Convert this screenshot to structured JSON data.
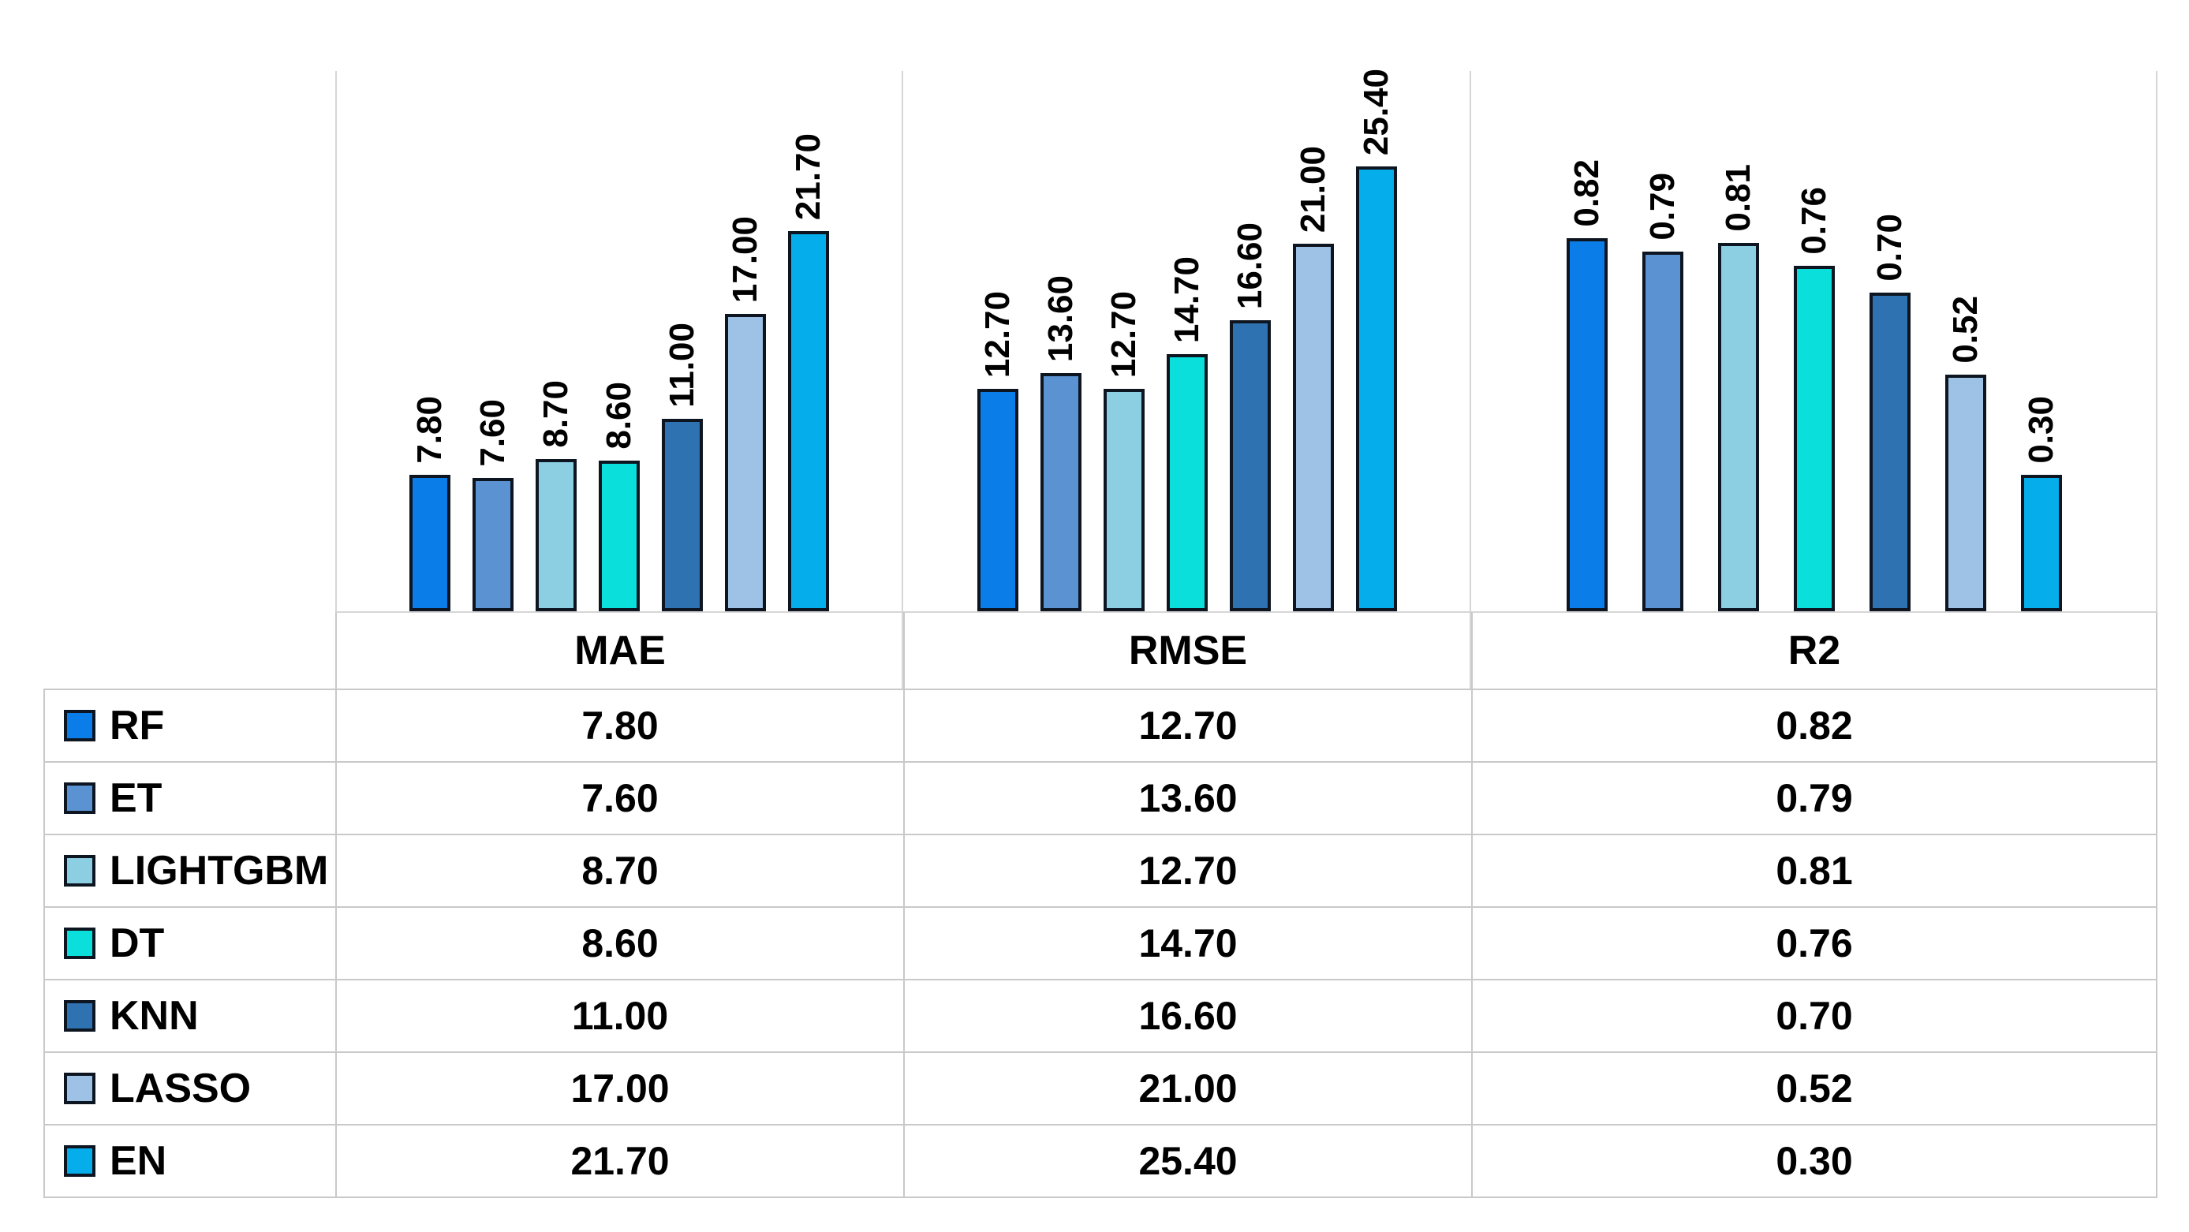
{
  "chart_data": {
    "type": "bar",
    "title": "",
    "categories": [
      "MAE",
      "RMSE",
      "R2"
    ],
    "series": [
      {
        "name": "RF",
        "color": "#0b7de9",
        "values": [
          7.8,
          12.7,
          0.82
        ],
        "labels": [
          "7.80",
          "12.70",
          "0.82"
        ]
      },
      {
        "name": "ET",
        "color": "#5b93d2",
        "values": [
          7.6,
          13.6,
          0.79
        ],
        "labels": [
          "7.60",
          "13.60",
          "0.79"
        ]
      },
      {
        "name": "LIGHTGBM",
        "color": "#8ccfe3",
        "values": [
          8.7,
          12.7,
          0.81
        ],
        "labels": [
          "8.70",
          "12.70",
          "0.81"
        ]
      },
      {
        "name": "DT",
        "color": "#0adfdb",
        "values": [
          8.6,
          14.7,
          0.76
        ],
        "labels": [
          "8.60",
          "14.70",
          "0.76"
        ]
      },
      {
        "name": "KNN",
        "color": "#2f72b2",
        "values": [
          11.0,
          16.6,
          0.7
        ],
        "labels": [
          "11.00",
          "16.60",
          "0.70"
        ]
      },
      {
        "name": "LASSO",
        "color": "#9ec2e5",
        "values": [
          17.0,
          21.0,
          0.52
        ],
        "labels": [
          "17.00",
          "21.00",
          "0.52"
        ]
      },
      {
        "name": "EN",
        "color": "#05aeea",
        "values": [
          21.7,
          25.4,
          0.3
        ],
        "labels": [
          "21.70",
          "25.40",
          "0.30"
        ]
      }
    ],
    "axis_max_by_category": [
      30.4,
      30.4,
      1.17
    ],
    "xlabel": "",
    "ylabel": "",
    "grid": "vertical-category-separators",
    "legend_position": "table-left-column",
    "data_labels": "rotated-90-above-bars",
    "data_table_attached": true
  },
  "table": {
    "column_headers": [
      "MAE",
      "RMSE",
      "R2"
    ],
    "rows": [
      {
        "label": "RF",
        "values": [
          "7.80",
          "12.70",
          "0.82"
        ]
      },
      {
        "label": "ET",
        "values": [
          "7.60",
          "13.60",
          "0.79"
        ]
      },
      {
        "label": "LIGHTGBM",
        "values": [
          "8.70",
          "12.70",
          "0.81"
        ]
      },
      {
        "label": "DT",
        "values": [
          "8.60",
          "14.70",
          "0.76"
        ]
      },
      {
        "label": "KNN",
        "values": [
          "11.00",
          "16.60",
          "0.70"
        ]
      },
      {
        "label": "LASSO",
        "values": [
          "17.00",
          "21.00",
          "0.52"
        ]
      },
      {
        "label": "EN",
        "values": [
          "21.70",
          "25.40",
          "0.30"
        ]
      }
    ]
  },
  "colors": {
    "background": "#ffffff",
    "table_grid_line": "#c9c9c9",
    "chart_separator_line": "#d6d6d6",
    "bar_outline": "#0d1520",
    "text": "#000000"
  }
}
